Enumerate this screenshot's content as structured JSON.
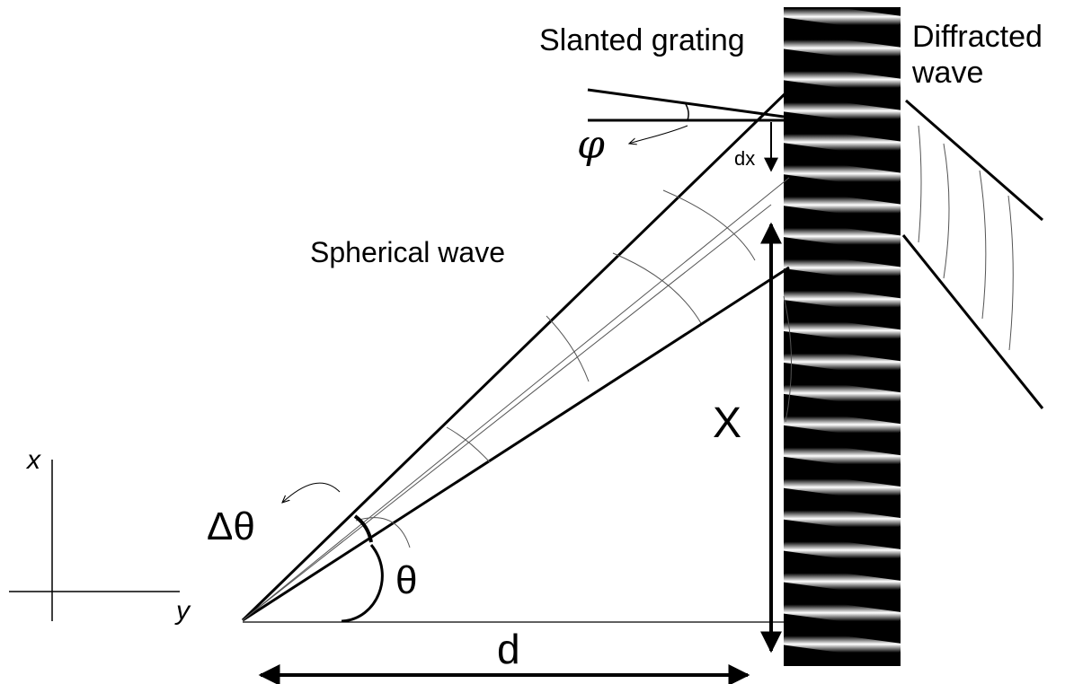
{
  "labels": {
    "slanted_grating": "Slanted grating",
    "diffracted_wave_line1": "Diffracted",
    "diffracted_wave_line2": "wave",
    "spherical_wave": "Spherical wave",
    "phi": "φ",
    "dx": "dx",
    "delta_theta": "Δθ",
    "theta": "θ",
    "X": "X",
    "d": "d",
    "axis_x": "x",
    "axis_y": "y"
  },
  "grating": {
    "fringe_count": 21
  },
  "colors": {
    "ink": "#000000",
    "thin_line": "#555555",
    "background": "#ffffff"
  }
}
